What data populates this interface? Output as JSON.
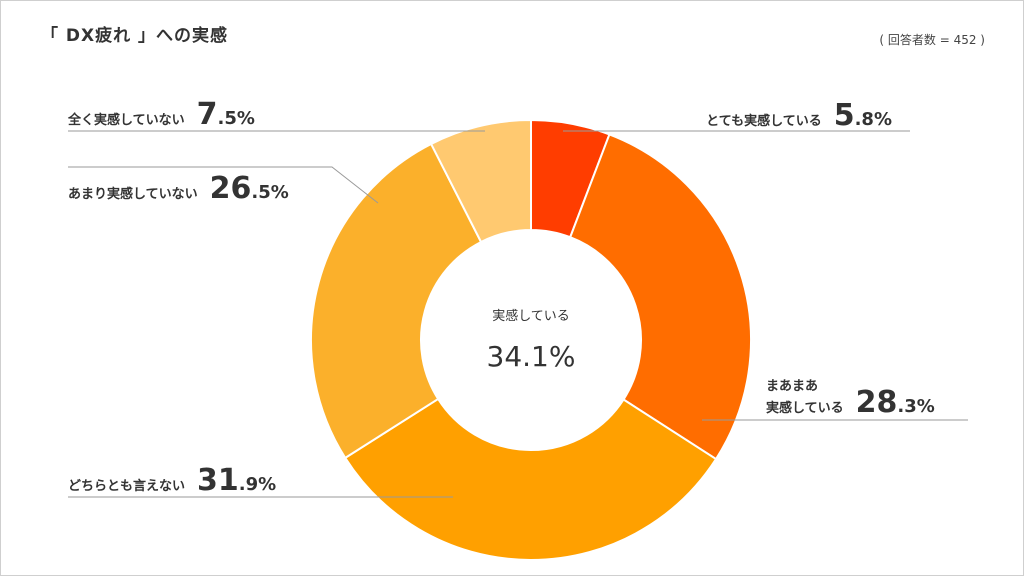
{
  "title": "「 DX疲れ 」への実感",
  "respondents": "( 回答者数 = 452 )",
  "center": {
    "label": "実感している",
    "value": "34.1%"
  },
  "colors": [
    "#FF3D00",
    "#FF6D00",
    "#FFA000",
    "#FBB02B",
    "#FFC970"
  ],
  "chart_data": {
    "type": "pie",
    "categories": [
      "とても実感している",
      "まあまあ実感している",
      "どちらとも言えない",
      "あまり実感していない",
      "全く実感していない"
    ],
    "values": [
      5.8,
      28.3,
      31.9,
      26.5,
      7.5
    ],
    "labels": [
      {
        "lines": [
          "とても実感している"
        ],
        "int": "5",
        "dec": ".8%"
      },
      {
        "lines": [
          "まあまあ",
          "実感している"
        ],
        "int": "28",
        "dec": ".3%"
      },
      {
        "lines": [
          "どちらとも言えない"
        ],
        "int": "31",
        "dec": ".9%"
      },
      {
        "lines": [
          "あまり実感していない"
        ],
        "int": "26",
        "dec": ".5%"
      },
      {
        "lines": [
          "全く実感していない"
        ],
        "int": "7",
        "dec": ".5%"
      }
    ]
  }
}
